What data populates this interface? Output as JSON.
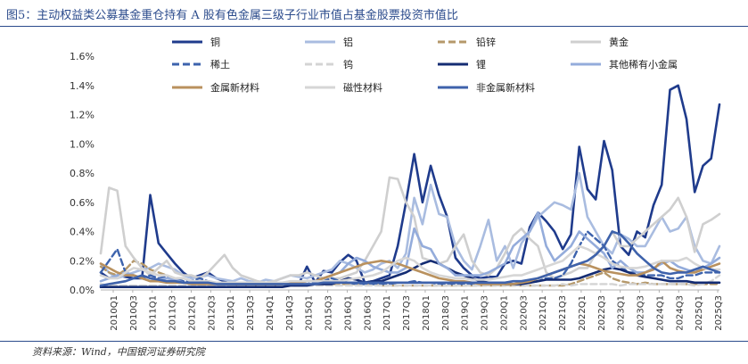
{
  "figure": {
    "title": "图5：主动权益类公募基金重仓持有 A 股有色金属三级子行业市值占基金股票投资市值比",
    "source": "资料来源：Wind，中国银河证券研究院"
  },
  "chart_data": {
    "type": "line",
    "legend_placement": "top",
    "grid": false,
    "ylim": [
      0,
      0.016
    ],
    "yticks": [
      "0.0%",
      "0.2%",
      "0.4%",
      "0.6%",
      "0.8%",
      "1.0%",
      "1.2%",
      "1.4%",
      "1.6%"
    ],
    "x_tick_labels": [
      "2010Q1",
      "2010Q3",
      "2011Q1",
      "2011Q3",
      "2012Q1",
      "2012Q3",
      "2013Q1",
      "2013Q3",
      "2014Q1",
      "2014Q3",
      "2015Q1",
      "2015Q3",
      "2016Q1",
      "2016Q3",
      "2017Q1",
      "2017Q3",
      "2018Q1",
      "2018Q3",
      "2019Q1",
      "2019Q3",
      "2020Q1",
      "2020Q3",
      "2021Q1",
      "2021Q3",
      "2022Q1",
      "2022Q3",
      "2023Q1",
      "2023Q3",
      "2024Q1",
      "2024Q3",
      "2025Q1",
      "2025Q3"
    ],
    "series": [
      {
        "name": "铜",
        "color": "#1f3b8c",
        "dash": "solid",
        "width": 2.6,
        "values": [
          0.0012,
          0.0008,
          0.001,
          0.0009,
          0.0008,
          0.0008,
          0.0065,
          0.0032,
          0.0025,
          0.0018,
          0.0012,
          0.0008,
          0.001,
          0.0012,
          0.0008,
          0.0006,
          0.0004,
          0.0004,
          0.0003,
          0.0004,
          0.0004,
          0.0003,
          0.0003,
          0.0005,
          0.0004,
          0.0016,
          0.0005,
          0.0013,
          0.0012,
          0.0019,
          0.0024,
          0.002,
          0.0005,
          0.0006,
          0.0008,
          0.001,
          0.003,
          0.006,
          0.0093,
          0.006,
          0.0085,
          0.0065,
          0.005,
          0.0022,
          0.0015,
          0.001,
          0.0008,
          0.0009,
          0.0009,
          0.0018,
          0.002,
          0.0018,
          0.0043,
          0.0053,
          0.0047,
          0.004,
          0.0028,
          0.0038,
          0.0098,
          0.0069,
          0.0062,
          0.0102,
          0.0082,
          0.003,
          0.0024,
          0.004,
          0.0036,
          0.0058,
          0.0072,
          0.0137,
          0.014,
          0.0117,
          0.0067,
          0.0085,
          0.009,
          0.0127
        ]
      },
      {
        "name": "铝",
        "color": "#a9bce0",
        "dash": "solid",
        "width": 2.6,
        "values": [
          0.0018,
          0.0012,
          0.0008,
          0.001,
          0.0012,
          0.0014,
          0.0015,
          0.0018,
          0.0016,
          0.0014,
          0.001,
          0.0008,
          0.0009,
          0.001,
          0.0008,
          0.0007,
          0.0006,
          0.0008,
          0.0006,
          0.0005,
          0.0007,
          0.0006,
          0.0008,
          0.001,
          0.0009,
          0.0008,
          0.001,
          0.0012,
          0.0014,
          0.002,
          0.0018,
          0.0015,
          0.0012,
          0.0014,
          0.0018,
          0.002,
          0.0015,
          0.0025,
          0.0063,
          0.0045,
          0.0072,
          0.0052,
          0.005,
          0.003,
          0.002,
          0.0014,
          0.003,
          0.0048,
          0.002,
          0.003,
          0.0015,
          0.0032,
          0.004,
          0.005,
          0.0055,
          0.006,
          0.0058,
          0.0055,
          0.008,
          0.005,
          0.004,
          0.003,
          0.0025,
          0.0038,
          0.0035,
          0.003,
          0.003,
          0.004,
          0.005,
          0.004,
          0.0042,
          0.005,
          0.003,
          0.002,
          0.0018,
          0.003
        ]
      },
      {
        "name": "铅锌",
        "color": "#b5986a",
        "dash": "dash",
        "width": 2.4,
        "values": [
          0.0016,
          0.0012,
          0.001,
          0.0014,
          0.002,
          0.0018,
          0.0014,
          0.0012,
          0.001,
          0.0008,
          0.0008,
          0.0006,
          0.0005,
          0.0005,
          0.0004,
          0.0004,
          0.0004,
          0.0003,
          0.0003,
          0.0003,
          0.0003,
          0.0003,
          0.0003,
          0.0003,
          0.0003,
          0.0004,
          0.0004,
          0.0004,
          0.0004,
          0.0004,
          0.0004,
          0.0004,
          0.0004,
          0.0004,
          0.0003,
          0.0003,
          0.0003,
          0.0003,
          0.0003,
          0.0003,
          0.0003,
          0.0003,
          0.0003,
          0.0003,
          0.0003,
          0.0003,
          0.0003,
          0.0003,
          0.0003,
          0.0003,
          0.0003,
          0.0003,
          0.0003,
          0.0003,
          0.0003,
          0.0003,
          0.0003,
          0.0004,
          0.0006,
          0.0008,
          0.001,
          0.0012,
          0.0008,
          0.0006,
          0.0005,
          0.0004,
          0.0005,
          0.0004,
          0.0004,
          0.0004,
          0.0004,
          0.0004,
          0.0004,
          0.0004,
          0.0004,
          0.0004
        ]
      },
      {
        "name": "黄金",
        "color": "#cfcfcf",
        "dash": "solid",
        "width": 2.6,
        "values": [
          0.0025,
          0.007,
          0.0068,
          0.003,
          0.0022,
          0.0015,
          0.001,
          0.0015,
          0.002,
          0.0012,
          0.001,
          0.001,
          0.0008,
          0.0012,
          0.0018,
          0.0024,
          0.0015,
          0.001,
          0.0008,
          0.0006,
          0.0005,
          0.0006,
          0.0008,
          0.001,
          0.001,
          0.0012,
          0.001,
          0.0008,
          0.0008,
          0.0008,
          0.001,
          0.0012,
          0.002,
          0.003,
          0.004,
          0.0077,
          0.0076,
          0.006,
          0.005,
          0.0022,
          0.002,
          0.0018,
          0.002,
          0.003,
          0.0038,
          0.002,
          0.0012,
          0.001,
          0.0015,
          0.0025,
          0.0037,
          0.0042,
          0.0035,
          0.003,
          0.0012,
          0.0008,
          0.001,
          0.0012,
          0.0015,
          0.0015,
          0.0025,
          0.003,
          0.004,
          0.003,
          0.003,
          0.0035,
          0.004,
          0.0045,
          0.005,
          0.0055,
          0.0063,
          0.005,
          0.0026,
          0.0045,
          0.0048,
          0.0052
        ]
      },
      {
        "name": "稀土",
        "color": "#3d63ad",
        "dash": "dash",
        "width": 2.4,
        "values": [
          0.0012,
          0.002,
          0.0028,
          0.0012,
          0.001,
          0.0008,
          0.001,
          0.0008,
          0.0009,
          0.0008,
          0.0006,
          0.0006,
          0.0008,
          0.0006,
          0.0005,
          0.0005,
          0.0004,
          0.0004,
          0.0004,
          0.0004,
          0.0005,
          0.0004,
          0.0004,
          0.0005,
          0.0005,
          0.0006,
          0.0005,
          0.0006,
          0.0008,
          0.0006,
          0.0005,
          0.0004,
          0.0004,
          0.0004,
          0.0004,
          0.0004,
          0.0005,
          0.0005,
          0.0006,
          0.0005,
          0.0005,
          0.0004,
          0.0004,
          0.0004,
          0.0004,
          0.0004,
          0.0004,
          0.0004,
          0.0004,
          0.0004,
          0.0004,
          0.0004,
          0.0005,
          0.0006,
          0.0008,
          0.0008,
          0.001,
          0.0018,
          0.003,
          0.004,
          0.0035,
          0.003,
          0.002,
          0.0016,
          0.0012,
          0.0012,
          0.001,
          0.001,
          0.001,
          0.0008,
          0.0008,
          0.001,
          0.001,
          0.0012,
          0.0012,
          0.0012
        ]
      },
      {
        "name": "钨",
        "color": "#d4d4d4",
        "dash": "dash",
        "width": 2.4,
        "values": [
          0.0004,
          0.0003,
          0.0003,
          0.0003,
          0.0003,
          0.0003,
          0.0003,
          0.0003,
          0.0003,
          0.0003,
          0.0003,
          0.0003,
          0.0003,
          0.0003,
          0.0003,
          0.0003,
          0.0003,
          0.0003,
          0.0003,
          0.0003,
          0.0003,
          0.0003,
          0.0003,
          0.0003,
          0.0003,
          0.0003,
          0.0003,
          0.0003,
          0.0003,
          0.0003,
          0.0003,
          0.0003,
          0.0003,
          0.0003,
          0.0003,
          0.0003,
          0.0003,
          0.0003,
          0.0003,
          0.0003,
          0.0003,
          0.0003,
          0.0003,
          0.0003,
          0.0003,
          0.0003,
          0.0003,
          0.0003,
          0.0003,
          0.0003,
          0.0003,
          0.0003,
          0.0003,
          0.0003,
          0.0003,
          0.0003,
          0.0004,
          0.0003,
          0.0004,
          0.0004,
          0.0004,
          0.0004,
          0.0004,
          0.0003,
          0.0004,
          0.0004,
          0.0004,
          0.0004,
          0.0004,
          0.0004,
          0.0004,
          0.0004,
          0.0003,
          0.0004,
          0.0006,
          0.001
        ]
      },
      {
        "name": "锂",
        "color": "#142c73",
        "dash": "solid",
        "width": 2.6,
        "values": [
          0.0002,
          0.0002,
          0.0002,
          0.0002,
          0.0002,
          0.0002,
          0.0002,
          0.0002,
          0.0002,
          0.0002,
          0.0002,
          0.0002,
          0.0002,
          0.0002,
          0.0002,
          0.0002,
          0.0002,
          0.0002,
          0.0002,
          0.0002,
          0.0002,
          0.0002,
          0.0002,
          0.0003,
          0.0003,
          0.0003,
          0.0004,
          0.0004,
          0.0004,
          0.0006,
          0.0008,
          0.0007,
          0.0005,
          0.0006,
          0.0006,
          0.0008,
          0.001,
          0.0012,
          0.0015,
          0.0018,
          0.002,
          0.0018,
          0.0015,
          0.0012,
          0.001,
          0.0008,
          0.0006,
          0.0005,
          0.0005,
          0.0004,
          0.0004,
          0.0004,
          0.0005,
          0.0006,
          0.0007,
          0.0007,
          0.0007,
          0.0007,
          0.0008,
          0.001,
          0.0012,
          0.0014,
          0.0015,
          0.0014,
          0.0012,
          0.001,
          0.0009,
          0.0008,
          0.0007,
          0.0006,
          0.0006,
          0.0006,
          0.0005,
          0.0005,
          0.0005,
          0.0005
        ]
      },
      {
        "name": "其他稀有小金属",
        "color": "#94acdb",
        "dash": "solid",
        "width": 2.6,
        "values": [
          0.0006,
          0.0008,
          0.001,
          0.0012,
          0.001,
          0.0008,
          0.0006,
          0.0007,
          0.0008,
          0.0007,
          0.0005,
          0.0005,
          0.0006,
          0.0005,
          0.0004,
          0.0004,
          0.0004,
          0.0004,
          0.0004,
          0.0004,
          0.0004,
          0.0004,
          0.0004,
          0.0005,
          0.0005,
          0.0006,
          0.0006,
          0.0008,
          0.001,
          0.0012,
          0.0018,
          0.0022,
          0.002,
          0.0016,
          0.0014,
          0.0012,
          0.0012,
          0.0015,
          0.0042,
          0.003,
          0.0028,
          0.0018,
          0.0015,
          0.001,
          0.001,
          0.001,
          0.001,
          0.0012,
          0.0015,
          0.0018,
          0.003,
          0.0035,
          0.004,
          0.0053,
          0.003,
          0.002,
          0.0025,
          0.003,
          0.004,
          0.0035,
          0.003,
          0.0025,
          0.0015,
          0.002,
          0.0015,
          0.0012,
          0.0012,
          0.0015,
          0.0018,
          0.002,
          0.0016,
          0.0014,
          0.0012,
          0.0015,
          0.0018,
          0.0022
        ]
      },
      {
        "name": "金属新材料",
        "color": "#b9915e",
        "dash": "solid",
        "width": 2.6,
        "values": [
          0.0018,
          0.0015,
          0.0012,
          0.001,
          0.001,
          0.0008,
          0.0006,
          0.0006,
          0.0005,
          0.0005,
          0.0005,
          0.0004,
          0.0004,
          0.0004,
          0.0004,
          0.0004,
          0.0004,
          0.0004,
          0.0004,
          0.0004,
          0.0004,
          0.0004,
          0.0004,
          0.0005,
          0.0005,
          0.0006,
          0.0006,
          0.0008,
          0.001,
          0.0012,
          0.0014,
          0.0016,
          0.0018,
          0.0019,
          0.002,
          0.0019,
          0.0018,
          0.0016,
          0.0014,
          0.0012,
          0.001,
          0.0008,
          0.0007,
          0.0006,
          0.0006,
          0.0005,
          0.0004,
          0.0004,
          0.0004,
          0.0004,
          0.0004,
          0.0005,
          0.0006,
          0.0008,
          0.001,
          0.0012,
          0.0014,
          0.0016,
          0.0018,
          0.0017,
          0.0015,
          0.0013,
          0.0012,
          0.0011,
          0.001,
          0.001,
          0.0012,
          0.0014,
          0.002,
          0.0015,
          0.0013,
          0.0012,
          0.0012,
          0.0014,
          0.0016,
          0.0018
        ]
      },
      {
        "name": "磁性材料",
        "color": "#d6d6d6",
        "dash": "solid",
        "width": 2.6,
        "values": [
          0.001,
          0.0008,
          0.0008,
          0.0012,
          0.0015,
          0.0014,
          0.0012,
          0.001,
          0.001,
          0.0008,
          0.0008,
          0.0006,
          0.0006,
          0.0006,
          0.0005,
          0.0005,
          0.0005,
          0.0005,
          0.0005,
          0.0005,
          0.0005,
          0.0005,
          0.0005,
          0.0006,
          0.0006,
          0.0006,
          0.0006,
          0.0006,
          0.0006,
          0.0006,
          0.0007,
          0.0008,
          0.0009,
          0.001,
          0.0012,
          0.0016,
          0.002,
          0.0022,
          0.002,
          0.0015,
          0.0012,
          0.001,
          0.0009,
          0.0008,
          0.0008,
          0.0007,
          0.0007,
          0.0007,
          0.0008,
          0.0009,
          0.001,
          0.001,
          0.0012,
          0.0014,
          0.0016,
          0.0018,
          0.002,
          0.0025,
          0.003,
          0.0028,
          0.0025,
          0.0022,
          0.0018,
          0.0016,
          0.0015,
          0.0015,
          0.0016,
          0.0018,
          0.002,
          0.002,
          0.002,
          0.0022,
          0.0018,
          0.0015,
          0.0014,
          0.0014
        ]
      },
      {
        "name": "非金属新材料",
        "color": "#3e62ab",
        "dash": "solid",
        "width": 2.6,
        "values": [
          0.0003,
          0.0004,
          0.0005,
          0.0006,
          0.0008,
          0.001,
          0.0008,
          0.0007,
          0.0006,
          0.0006,
          0.0005,
          0.0005,
          0.0005,
          0.0005,
          0.0004,
          0.0004,
          0.0004,
          0.0004,
          0.0004,
          0.0004,
          0.0004,
          0.0004,
          0.0004,
          0.0004,
          0.0004,
          0.0004,
          0.0004,
          0.0005,
          0.0005,
          0.0005,
          0.0005,
          0.0005,
          0.0005,
          0.0005,
          0.0005,
          0.0005,
          0.0005,
          0.0005,
          0.0005,
          0.0005,
          0.0005,
          0.0005,
          0.0005,
          0.0005,
          0.0005,
          0.0005,
          0.0005,
          0.0005,
          0.0005,
          0.0005,
          0.0006,
          0.0006,
          0.0007,
          0.0008,
          0.001,
          0.0012,
          0.0014,
          0.0016,
          0.0018,
          0.002,
          0.0024,
          0.003,
          0.004,
          0.0038,
          0.0032,
          0.0025,
          0.002,
          0.0015,
          0.0012,
          0.0011,
          0.0012,
          0.0012,
          0.0014,
          0.0016,
          0.0014,
          0.0012
        ]
      }
    ]
  }
}
